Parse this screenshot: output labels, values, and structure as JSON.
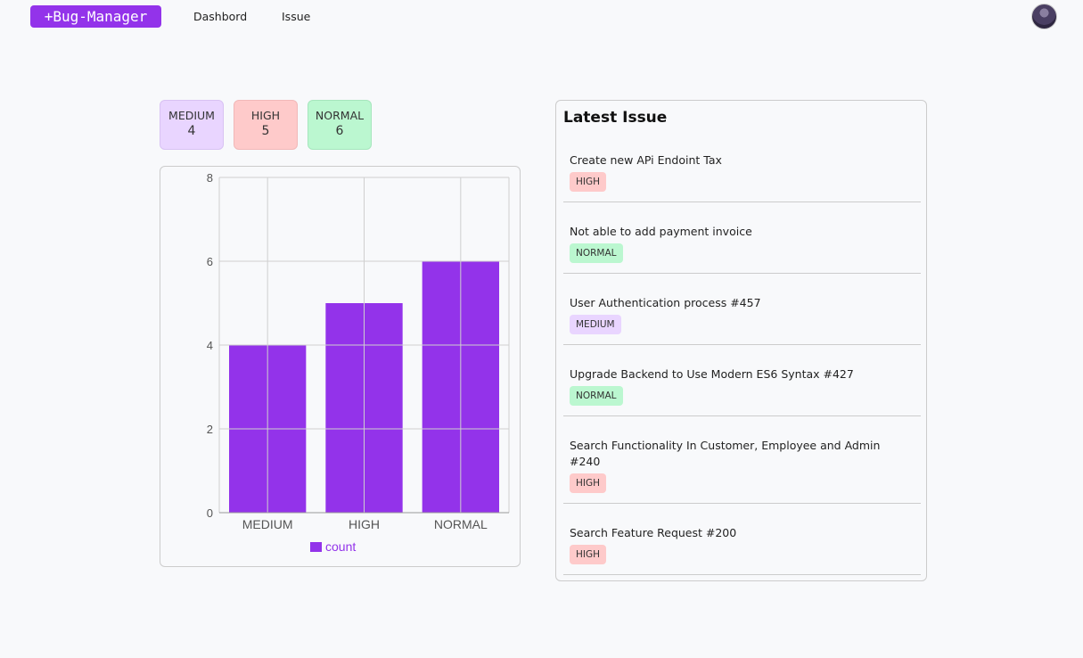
{
  "navbar": {
    "logo": "+Bug-Manager",
    "links": [
      "Dashbord",
      "Issue"
    ]
  },
  "stats": [
    {
      "label": "MEDIUM",
      "count": "4",
      "bg": "#e9d5ff"
    },
    {
      "label": "HIGH",
      "count": "5",
      "bg": "#fecaca"
    },
    {
      "label": "NORMAL",
      "count": "6",
      "bg": "#bbf7d0"
    }
  ],
  "chart_data": {
    "type": "bar",
    "categories": [
      "MEDIUM",
      "HIGH",
      "NORMAL"
    ],
    "series": [
      {
        "name": "count",
        "values": [
          4,
          5,
          6
        ],
        "color": "#9333ea"
      }
    ],
    "ylim": [
      0,
      8
    ],
    "yticks": [
      0,
      2,
      4,
      6,
      8
    ],
    "grid": true,
    "legend": "bottom"
  },
  "latest": {
    "title": "Latest Issue",
    "items": [
      {
        "title": "Create new APi Endoint Tax",
        "priority": "HIGH"
      },
      {
        "title": "Not able to add payment invoice",
        "priority": "NORMAL"
      },
      {
        "title": "User Authentication process #457",
        "priority": "MEDIUM"
      },
      {
        "title": "Upgrade Backend to Use Modern ES6 Syntax #427",
        "priority": "NORMAL"
      },
      {
        "title": "Search Functionality In Customer, Employee and Admin #240",
        "priority": "HIGH"
      },
      {
        "title": "Search Feature Request #200",
        "priority": "HIGH"
      }
    ]
  },
  "colors": {
    "accent": "#9333ea",
    "high": "#fecaca",
    "normal": "#bbf7d0",
    "medium": "#e9d5ff"
  }
}
